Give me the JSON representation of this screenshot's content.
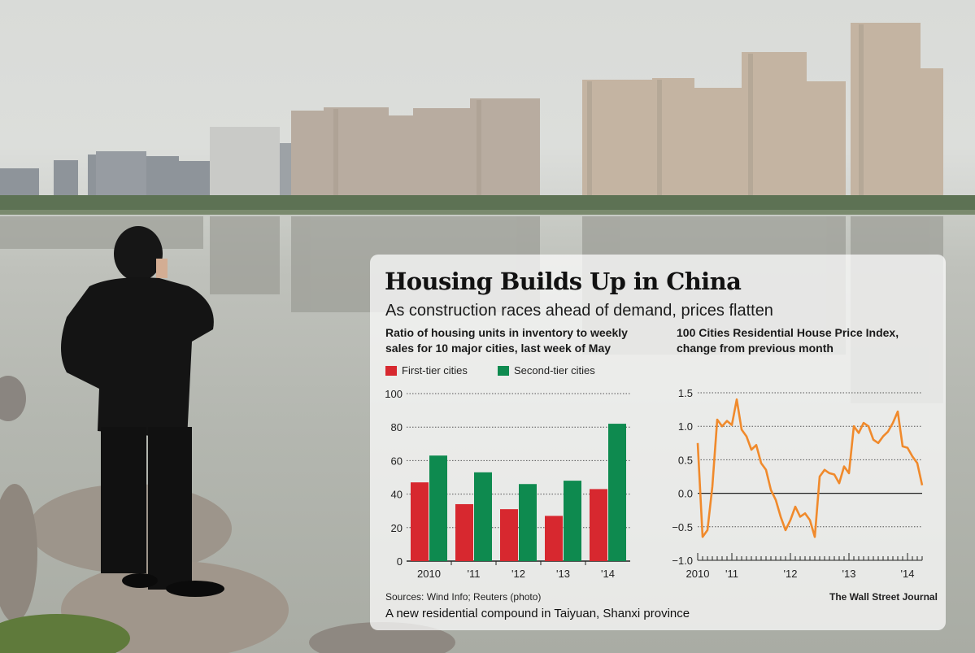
{
  "title": "Housing Builds Up in China",
  "subtitle": "As construction races ahead of demand, prices flatten",
  "sources": "Sources: Wind Info; Reuters (photo)",
  "caption": "A new residential compound in Taiyuan, Shanxi province",
  "credit": "The Wall Street Journal",
  "colors": {
    "first_tier": "#d7282f",
    "second_tier": "#0e8a4f",
    "line": "#f08a2c"
  },
  "chart_data": [
    {
      "type": "bar",
      "title": "Ratio of housing units in inventory to weekly\nsales for 10 major cities, last week of May",
      "categories": [
        "2010",
        "'11",
        "'12",
        "'13",
        "'14"
      ],
      "series": [
        {
          "name": "First-tier cities",
          "values": [
            47,
            34,
            31,
            27,
            43
          ]
        },
        {
          "name": "Second-tier cities",
          "values": [
            63,
            53,
            46,
            48,
            82
          ]
        }
      ],
      "ylim": [
        0,
        100
      ],
      "yticks": [
        0,
        20,
        40,
        60,
        80,
        100
      ],
      "grid": true,
      "legend": "top-left"
    },
    {
      "type": "line",
      "title": "100 Cities Residential House Price Index,\nchange from previous month",
      "x_tick_labels": [
        "2010",
        "'11",
        "'12",
        "'13",
        "'14"
      ],
      "x_tick_months": [
        0,
        7,
        19,
        31,
        43
      ],
      "ylim": [
        -1.0,
        1.5
      ],
      "yticks": [
        "1.5",
        "1.0",
        "0.5",
        "0.0",
        "−0.5",
        "−1.0"
      ],
      "ytick_values": [
        1.5,
        1.0,
        0.5,
        0.0,
        -0.5,
        -1.0
      ],
      "zero_line": true,
      "series": [
        {
          "values": [
            0.75,
            -0.65,
            -0.55,
            0.1,
            1.1,
            1.0,
            1.08,
            1.02,
            1.4,
            0.95,
            0.85,
            0.65,
            0.72,
            0.45,
            0.35,
            0.05,
            -0.1,
            -0.35,
            -0.55,
            -0.4,
            -0.2,
            -0.35,
            -0.3,
            -0.4,
            -0.65,
            0.25,
            0.35,
            0.3,
            0.28,
            0.15,
            0.4,
            0.3,
            1.0,
            0.9,
            1.05,
            1.0,
            0.8,
            0.75,
            0.85,
            0.92,
            1.05,
            1.22,
            0.7,
            0.68,
            0.55,
            0.45,
            0.12
          ]
        }
      ]
    }
  ]
}
